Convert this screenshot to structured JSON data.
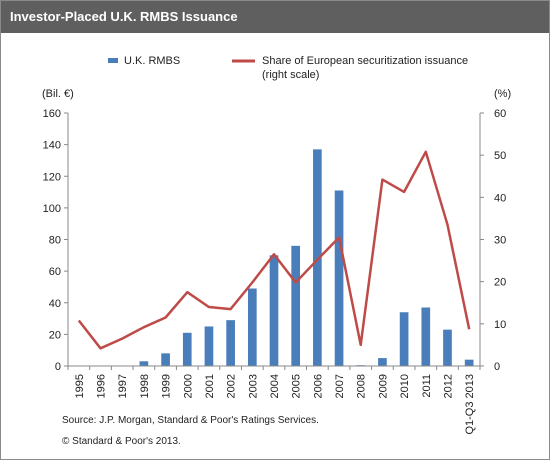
{
  "header": {
    "title": "Investor-Placed U.K. RMBS Issuance"
  },
  "footer": {
    "source": "Source: J.P. Morgan, Standard & Poor's Ratings Services.",
    "copyright": "© Standard & Poor's 2013."
  },
  "colors": {
    "bar": "#4a7ebb",
    "line": "#be4b48",
    "header": "#5f5f5f"
  },
  "chart_data": {
    "type": "bar",
    "categories": [
      "1995",
      "1996",
      "1997",
      "1998",
      "1999",
      "2000",
      "2001",
      "2002",
      "2003",
      "2004",
      "2005",
      "2006",
      "2007",
      "2008",
      "2009",
      "2010",
      "2011",
      "2012",
      "Q1-Q3 2013"
    ],
    "left_axis_unit": "(Bil. €)",
    "right_axis_unit": "(%)",
    "ylim_left": [
      0,
      160
    ],
    "ylim_right": [
      0,
      60
    ],
    "left_ticks": [
      0,
      20,
      40,
      60,
      80,
      100,
      120,
      140,
      160
    ],
    "right_ticks": [
      0,
      10,
      20,
      30,
      40,
      50,
      60
    ],
    "grid": false,
    "legend_position": "top",
    "series": [
      {
        "name": "U.K. RMBS",
        "type": "bar",
        "axis": "left",
        "values": [
          0,
          0,
          0,
          3,
          8,
          21,
          25,
          29,
          49,
          70,
          76,
          137,
          111,
          0.5,
          5,
          34,
          37,
          23,
          4
        ]
      },
      {
        "name": "Share of European securitization issuance (right scale)",
        "type": "line",
        "axis": "right",
        "values": [
          10.8,
          4.2,
          6.5,
          9.2,
          11.5,
          17.5,
          14.0,
          13.5,
          19.8,
          26.5,
          19.8,
          25.2,
          30.5,
          5.0,
          44.2,
          41.3,
          50.8,
          33.5,
          8.7
        ]
      }
    ]
  }
}
